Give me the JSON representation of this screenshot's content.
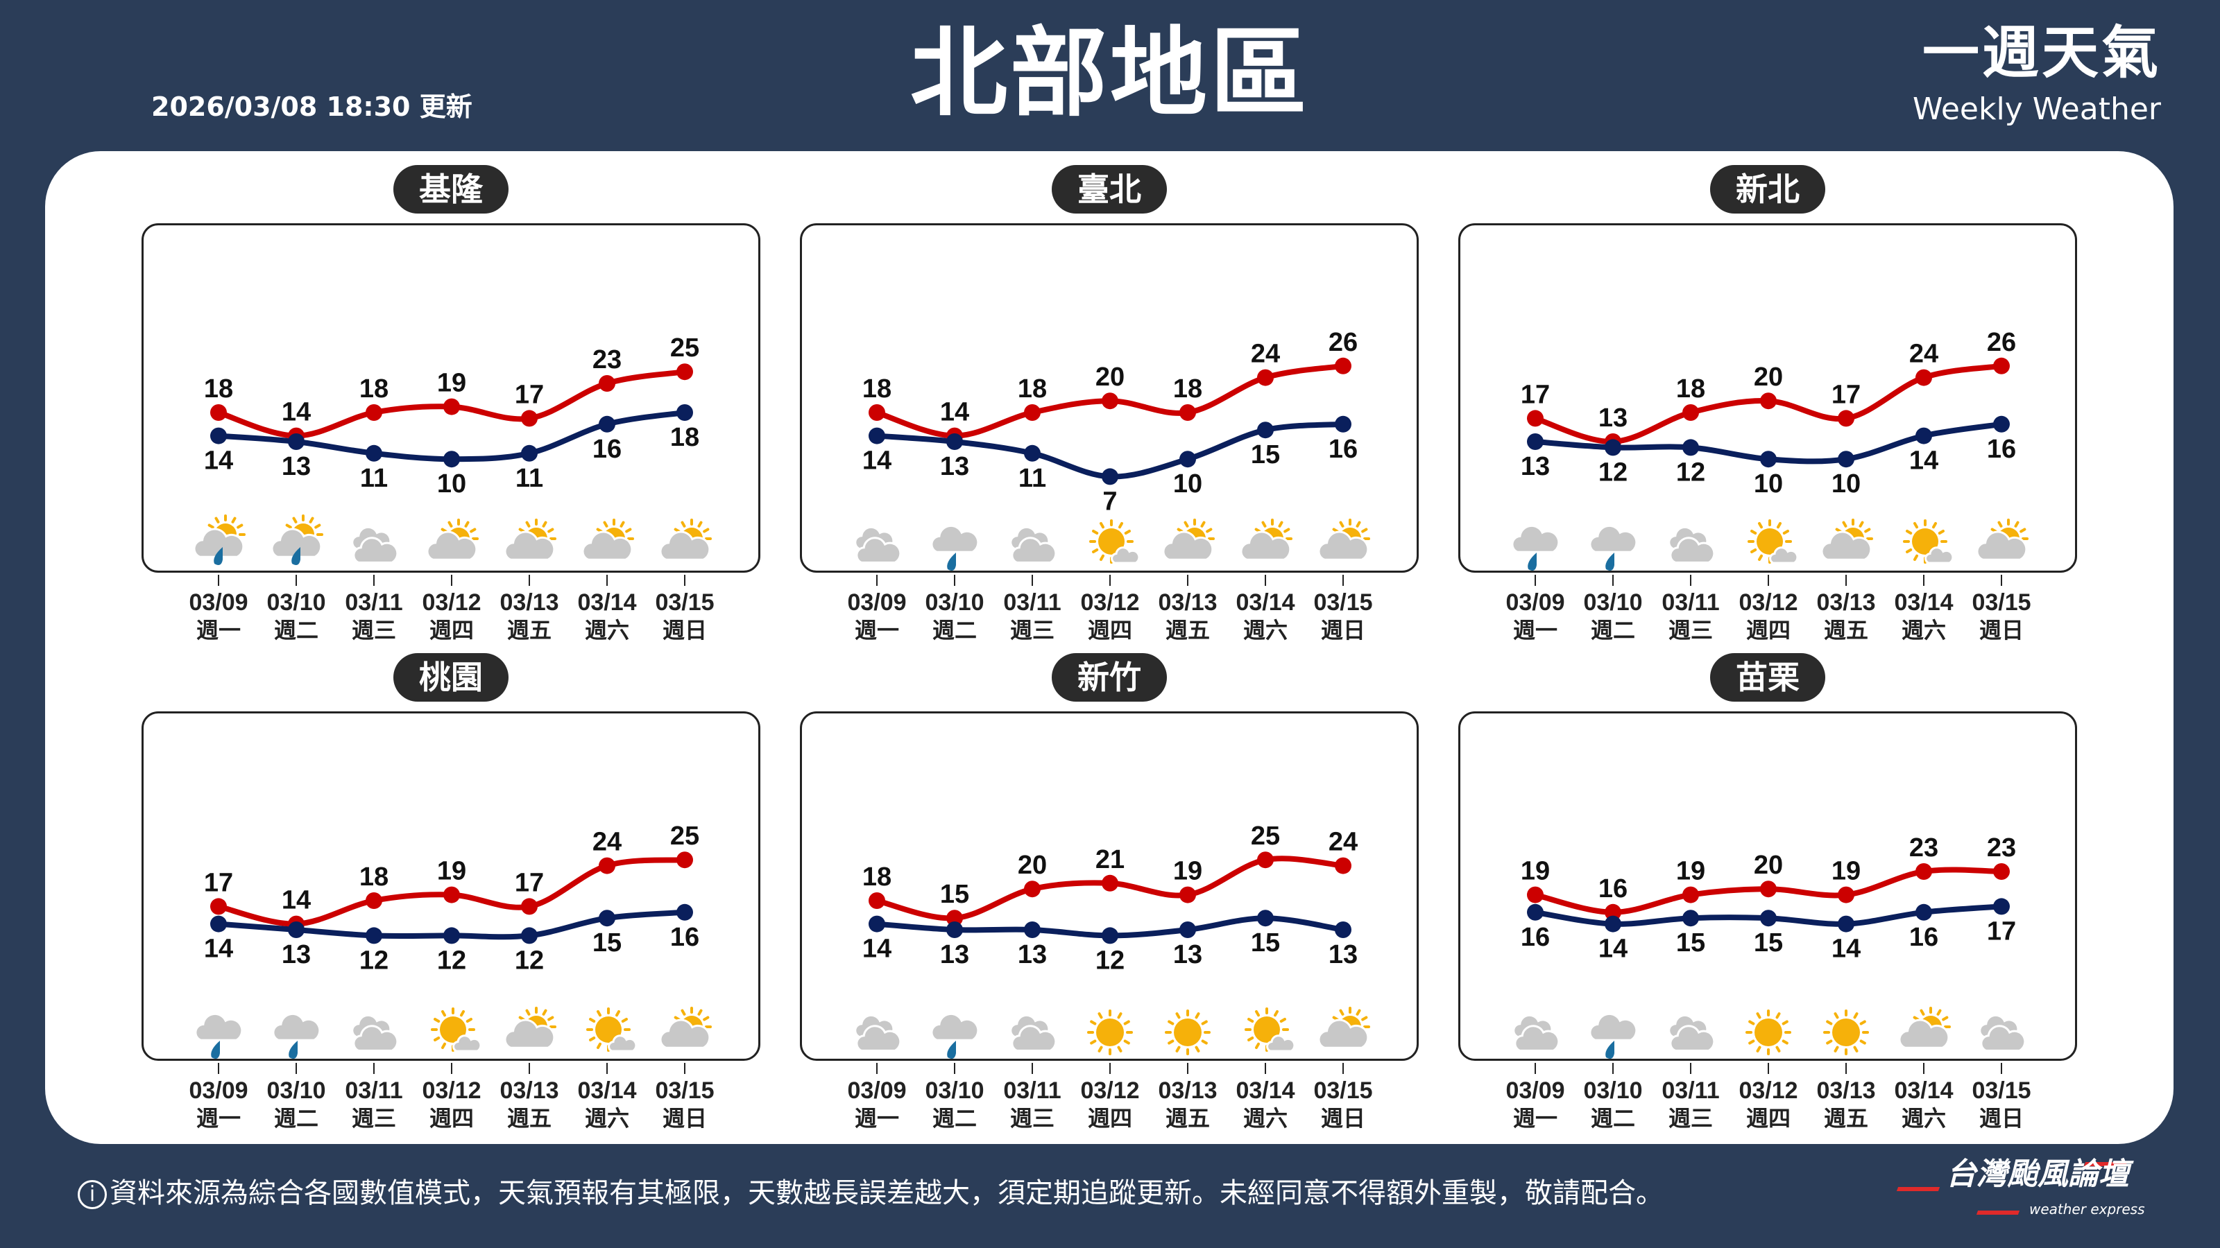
{
  "header": {
    "updated": "2026/03/08 18:30 更新",
    "title": "北部地區",
    "brand_zh": "一週天氣",
    "brand_en": "Weekly Weather"
  },
  "colors": {
    "background": "#2b3d58",
    "high": "#cc0000",
    "low": "#0a1f5c",
    "sun": "#f6b10a",
    "cloud": "#c8c8c8",
    "rain": "#1a6ea0"
  },
  "footer": {
    "info_icon": "ⓘ",
    "text": "資料來源為綜合各國數值模式，天氣預報有其極限，天數越長誤差越大，須定期追蹤更新。未經同意不得額外重製，敬請配合。",
    "logo_zh": "台灣颱風論壇",
    "logo_en": "weather express"
  },
  "chart_data": [
    {
      "type": "line",
      "title": "基隆",
      "categories": [
        "03/09",
        "03/10",
        "03/11",
        "03/12",
        "03/13",
        "03/14",
        "03/15"
      ],
      "weekdays": [
        "週一",
        "週二",
        "週三",
        "週四",
        "週五",
        "週六",
        "週日"
      ],
      "series": [
        {
          "key": "high",
          "values": [
            18,
            14,
            18,
            19,
            17,
            23,
            25
          ]
        },
        {
          "key": "low",
          "values": [
            14,
            13,
            11,
            10,
            11,
            16,
            18
          ]
        }
      ],
      "icons": [
        "partly-cloudy-rain",
        "partly-cloudy-rain",
        "cloudy",
        "partly-cloudy",
        "partly-cloudy",
        "partly-cloudy",
        "partly-cloudy"
      ]
    },
    {
      "type": "line",
      "title": "臺北",
      "categories": [
        "03/09",
        "03/10",
        "03/11",
        "03/12",
        "03/13",
        "03/14",
        "03/15"
      ],
      "weekdays": [
        "週一",
        "週二",
        "週三",
        "週四",
        "週五",
        "週六",
        "週日"
      ],
      "series": [
        {
          "key": "high",
          "values": [
            18,
            14,
            18,
            20,
            18,
            24,
            26
          ]
        },
        {
          "key": "low",
          "values": [
            14,
            13,
            11,
            7,
            10,
            15,
            16
          ]
        }
      ],
      "icons": [
        "cloudy",
        "rain",
        "cloudy",
        "mostly-sunny",
        "partly-cloudy",
        "partly-cloudy",
        "partly-cloudy"
      ]
    },
    {
      "type": "line",
      "title": "新北",
      "categories": [
        "03/09",
        "03/10",
        "03/11",
        "03/12",
        "03/13",
        "03/14",
        "03/15"
      ],
      "weekdays": [
        "週一",
        "週二",
        "週三",
        "週四",
        "週五",
        "週六",
        "週日"
      ],
      "series": [
        {
          "key": "high",
          "values": [
            17,
            13,
            18,
            20,
            17,
            24,
            26
          ]
        },
        {
          "key": "low",
          "values": [
            13,
            12,
            12,
            10,
            10,
            14,
            16
          ]
        }
      ],
      "icons": [
        "rain",
        "rain",
        "cloudy",
        "mostly-sunny",
        "partly-cloudy",
        "mostly-sunny",
        "partly-cloudy"
      ]
    },
    {
      "type": "line",
      "title": "桃園",
      "categories": [
        "03/09",
        "03/10",
        "03/11",
        "03/12",
        "03/13",
        "03/14",
        "03/15"
      ],
      "weekdays": [
        "週一",
        "週二",
        "週三",
        "週四",
        "週五",
        "週六",
        "週日"
      ],
      "series": [
        {
          "key": "high",
          "values": [
            17,
            14,
            18,
            19,
            17,
            24,
            25
          ]
        },
        {
          "key": "low",
          "values": [
            14,
            13,
            12,
            12,
            12,
            15,
            16
          ]
        }
      ],
      "icons": [
        "rain",
        "rain",
        "cloudy",
        "mostly-sunny",
        "partly-cloudy",
        "mostly-sunny",
        "partly-cloudy"
      ]
    },
    {
      "type": "line",
      "title": "新竹",
      "categories": [
        "03/09",
        "03/10",
        "03/11",
        "03/12",
        "03/13",
        "03/14",
        "03/15"
      ],
      "weekdays": [
        "週一",
        "週二",
        "週三",
        "週四",
        "週五",
        "週六",
        "週日"
      ],
      "series": [
        {
          "key": "high",
          "values": [
            18,
            15,
            20,
            21,
            19,
            25,
            24
          ]
        },
        {
          "key": "low",
          "values": [
            14,
            13,
            13,
            12,
            13,
            15,
            13
          ]
        }
      ],
      "icons": [
        "cloudy",
        "rain",
        "cloudy",
        "sunny",
        "sunny",
        "mostly-sunny",
        "partly-cloudy"
      ]
    },
    {
      "type": "line",
      "title": "苗栗",
      "categories": [
        "03/09",
        "03/10",
        "03/11",
        "03/12",
        "03/13",
        "03/14",
        "03/15"
      ],
      "weekdays": [
        "週一",
        "週二",
        "週三",
        "週四",
        "週五",
        "週六",
        "週日"
      ],
      "series": [
        {
          "key": "high",
          "values": [
            19,
            16,
            19,
            20,
            19,
            23,
            23
          ]
        },
        {
          "key": "low",
          "values": [
            16,
            14,
            15,
            15,
            14,
            16,
            17
          ]
        }
      ],
      "icons": [
        "cloudy",
        "rain",
        "cloudy",
        "sunny",
        "sunny",
        "partly-cloudy",
        "cloudy"
      ]
    }
  ]
}
